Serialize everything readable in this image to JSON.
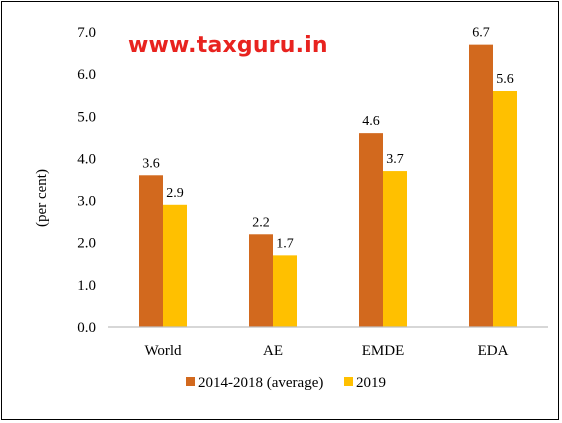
{
  "watermark": "www.taxguru.in",
  "chart_data": {
    "type": "bar",
    "title": "",
    "xlabel": "",
    "ylabel": "(per cent)",
    "ylim": [
      0,
      7
    ],
    "yticks": [
      "0.0",
      "1.0",
      "2.0",
      "3.0",
      "4.0",
      "5.0",
      "6.0",
      "7.0"
    ],
    "categories": [
      "World",
      "AE",
      "EMDE",
      "EDA"
    ],
    "series": [
      {
        "name": "2014-2018 (average)",
        "color": "#d2691e",
        "values": [
          3.6,
          2.2,
          4.6,
          6.7
        ]
      },
      {
        "name": "2019",
        "color": "#ffc000",
        "values": [
          2.9,
          1.7,
          3.7,
          5.6
        ]
      }
    ],
    "grid": false,
    "legend_position": "bottom"
  }
}
